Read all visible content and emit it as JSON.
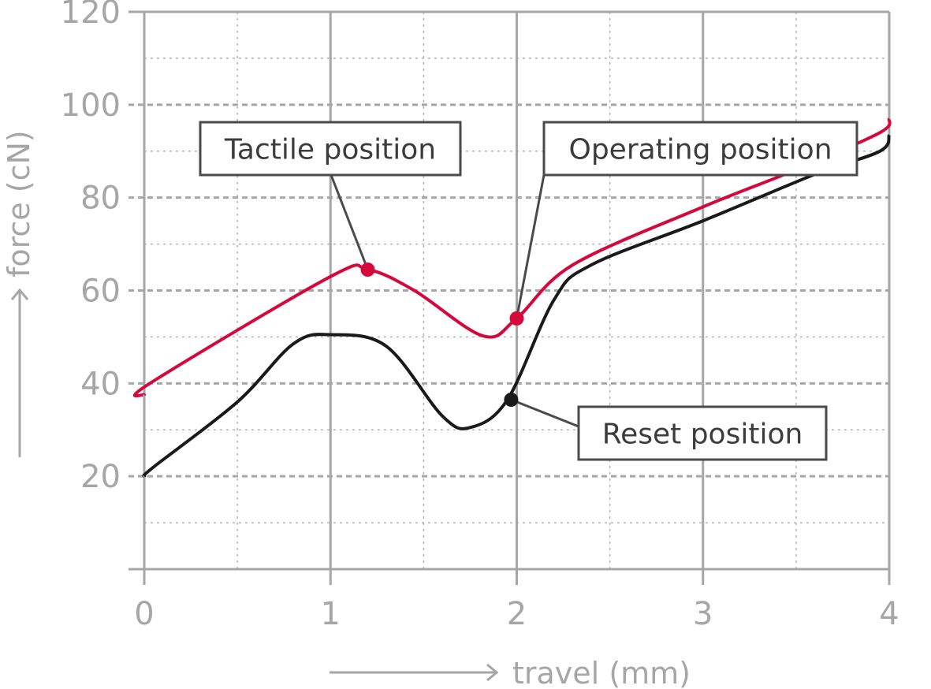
{
  "chart_data": {
    "type": "line",
    "xlabel": "travel (mm)",
    "ylabel": "force (cN)",
    "xlim": [
      0,
      4
    ],
    "ylim": [
      0,
      120
    ],
    "x_ticks": [
      "0",
      "1",
      "2",
      "3",
      "4"
    ],
    "y_ticks": [
      "20",
      "40",
      "60",
      "80",
      "100",
      "120"
    ],
    "grid": "major solid, minor dotted",
    "series": [
      {
        "color": "#d6083b",
        "points": [
          [
            0,
            37.5
          ],
          [
            0.03,
            40
          ],
          [
            1,
            63
          ],
          [
            1.2,
            64.5
          ],
          [
            1.45,
            60
          ],
          [
            1.82,
            50.2
          ],
          [
            2,
            54
          ],
          [
            2.3,
            65.5
          ],
          [
            3,
            78
          ],
          [
            3.5,
            86
          ],
          [
            3.95,
            94
          ],
          [
            4,
            97
          ]
        ]
      },
      {
        "color": "#1a1a1a",
        "points": [
          [
            0,
            20
          ],
          [
            0.05,
            22
          ],
          [
            0.5,
            36
          ],
          [
            0.8,
            48.5
          ],
          [
            1,
            50.5
          ],
          [
            1.3,
            48
          ],
          [
            1.6,
            33
          ],
          [
            1.75,
            30.5
          ],
          [
            1.95,
            36.5
          ],
          [
            2.2,
            58
          ],
          [
            2.4,
            65.5
          ],
          [
            3,
            75
          ],
          [
            3.6,
            85
          ],
          [
            3.95,
            90
          ],
          [
            4,
            93.5
          ]
        ]
      }
    ],
    "annotations": [
      {
        "text": "Tactile position",
        "x": 1.2,
        "y": 64.5,
        "color": "#d6083b"
      },
      {
        "text": "Operating position",
        "x": 2,
        "y": 54,
        "color": "#d6083b"
      },
      {
        "text": "Reset position",
        "x": 1.97,
        "y": 36.5,
        "color": "#1a1a1a"
      }
    ]
  }
}
